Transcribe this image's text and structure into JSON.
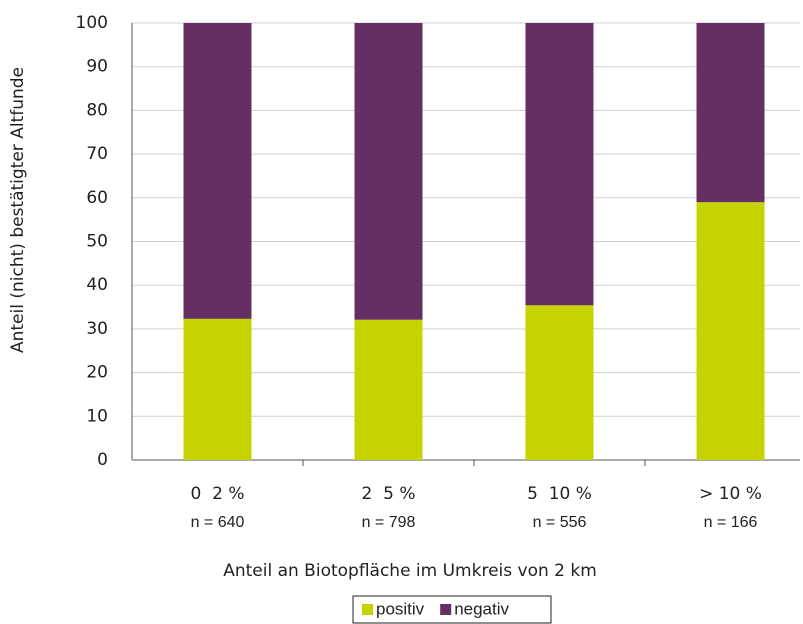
{
  "chart_data": {
    "type": "stacked_bar",
    "y_label": "Anteil (nicht) bestätigter Altfunde",
    "x_label": "Anteil an Biotopfläche im Umkreis von 2 km",
    "categories": [
      "0  2 %",
      "2  5 %",
      "5  10 %",
      "> 10 %"
    ],
    "n_labels": [
      "n = 640",
      "n = 798",
      "n = 556",
      "n = 166"
    ],
    "series": [
      {
        "name": "positiv",
        "color": "#c5d400",
        "values": [
          32.3,
          32.1,
          35.4,
          59.0
        ]
      },
      {
        "name": "negativ",
        "color": "#652f64",
        "values": [
          67.7,
          67.9,
          64.6,
          41.0
        ]
      }
    ],
    "ylim": [
      0,
      100
    ],
    "yticks": [
      0,
      10,
      20,
      30,
      40,
      50,
      60,
      70,
      80,
      90,
      100
    ],
    "grid": true
  }
}
